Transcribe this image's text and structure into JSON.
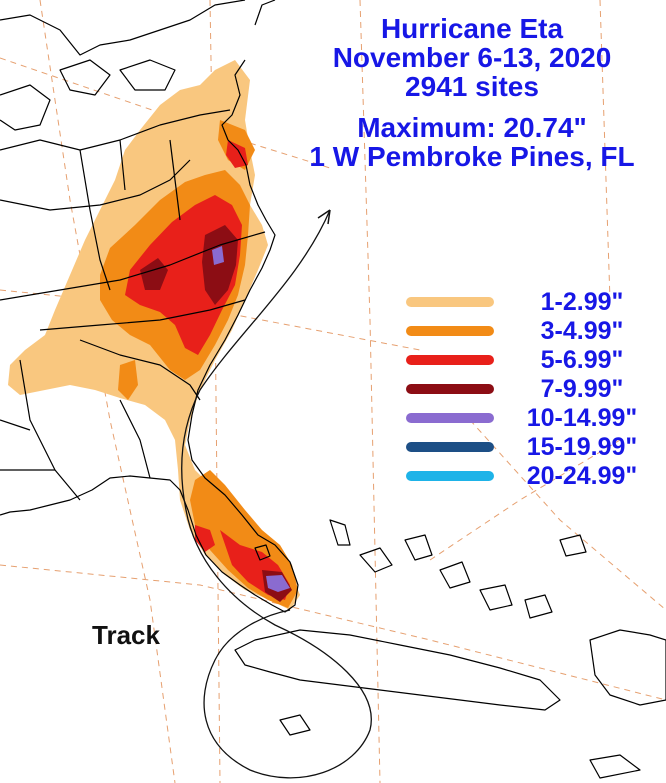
{
  "title": {
    "storm": "Hurricane Eta",
    "dates": "November 6-13, 2020",
    "sites": "2941 sites",
    "maximum": "Maximum: 20.74\"",
    "location": "1 W Pembroke Pines, FL"
  },
  "legend": [
    {
      "label": "1-2.99\"",
      "color": "#f9c77f"
    },
    {
      "label": "3-4.99\"",
      "color": "#f28b16"
    },
    {
      "label": "5-6.99\"",
      "color": "#e8201a"
    },
    {
      "label": "7-9.99\"",
      "color": "#8c0d14"
    },
    {
      "label": "10-14.99\"",
      "color": "#8a6bd0"
    },
    {
      "label": "15-19.99\"",
      "color": "#1d4f86"
    },
    {
      "label": "20-24.99\"",
      "color": "#1eb3e8"
    }
  ],
  "track_label": "Track",
  "colors": {
    "title_text": "#1717e6",
    "land_outline": "#000000",
    "graticule": "#e6a070",
    "track": "#111111"
  },
  "icons": [
    "track-arrow-icon"
  ]
}
